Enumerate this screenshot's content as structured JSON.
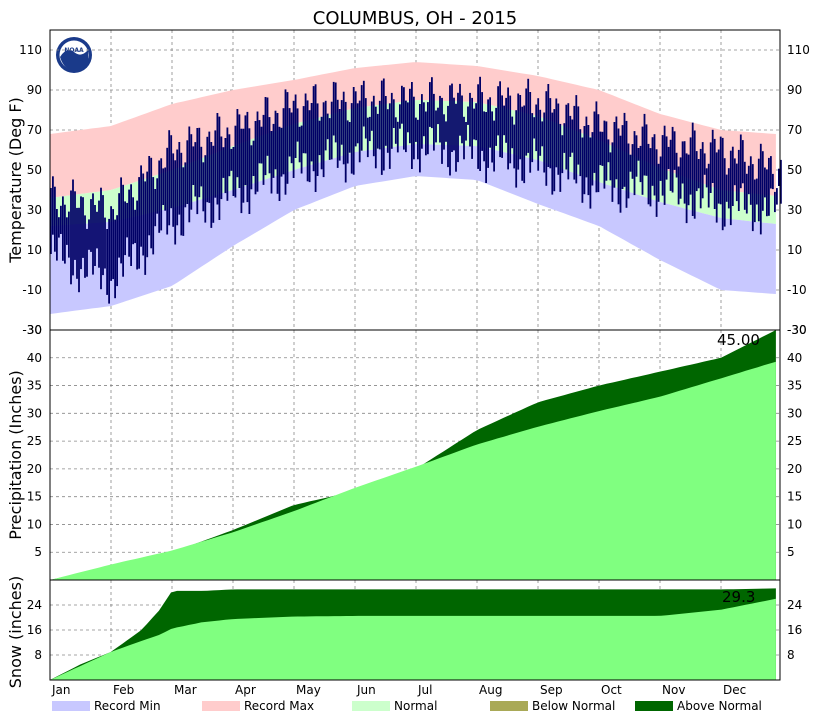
{
  "chart_data": {
    "title": "COLUMBUS, OH - 2015",
    "months": [
      "Jan",
      "Feb",
      "Mar",
      "Apr",
      "May",
      "Jun",
      "Jul",
      "Aug",
      "Sep",
      "Oct",
      "Nov",
      "Dec"
    ],
    "legend": [
      {
        "label": "Record Min",
        "color": "#c8c8ff"
      },
      {
        "label": "Record Max",
        "color": "#ffcccc"
      },
      {
        "label": "Normal",
        "color": "#ccffcc"
      },
      {
        "label": "Below Normal",
        "color": "#a9a957"
      },
      {
        "label": "Above Normal",
        "color": "#006600"
      }
    ],
    "panels": [
      {
        "type": "area",
        "ylabel": "Temperature (Deg F)",
        "ylim": [
          -30,
          120
        ],
        "ticks": [
          -30,
          -10,
          10,
          30,
          50,
          70,
          90,
          110
        ],
        "x_month_index": [
          0,
          1,
          2,
          3,
          4,
          5,
          6,
          7,
          8,
          9,
          10,
          11,
          11.9
        ],
        "record_min": [
          -22,
          -18,
          -8,
          12,
          30,
          42,
          47,
          45,
          33,
          22,
          5,
          -10,
          -12
        ],
        "record_max": [
          68,
          72,
          83,
          90,
          95,
          101,
          104,
          102,
          97,
          90,
          78,
          70,
          68
        ],
        "normal_low": [
          22,
          24,
          31,
          40,
          50,
          59,
          63,
          62,
          55,
          44,
          34,
          26,
          23
        ],
        "normal_high": [
          36,
          40,
          50,
          62,
          73,
          81,
          85,
          84,
          77,
          65,
          51,
          40,
          37
        ],
        "observed_low": [
          8,
          -5,
          25,
          38,
          50,
          58,
          62,
          58,
          52,
          42,
          40,
          32,
          30
        ],
        "observed_high": [
          36,
          30,
          60,
          70,
          82,
          85,
          85,
          85,
          84,
          72,
          64,
          60,
          50
        ]
      },
      {
        "type": "area",
        "ylabel": "Precipitation (Inches)",
        "ylim": [
          0,
          45
        ],
        "ticks": [
          5,
          10,
          15,
          20,
          25,
          30,
          35,
          40
        ],
        "total_label": "45.00",
        "x_month_index": [
          0,
          1,
          2,
          3,
          4,
          5,
          6,
          7,
          8,
          9,
          10,
          11,
          11.9
        ],
        "normal": [
          0,
          2.8,
          5.3,
          8.6,
          12.4,
          16.6,
          20.4,
          24.4,
          27.6,
          30.4,
          33.0,
          36.3,
          39.3
        ],
        "observed": [
          0,
          2.5,
          5.0,
          9.0,
          13.5,
          16.0,
          20.0,
          27.0,
          32.0,
          35.0,
          37.5,
          40.0,
          45.0
        ]
      },
      {
        "type": "area",
        "ylabel": "Snow (inches)",
        "ylim": [
          0,
          32
        ],
        "ticks": [
          8,
          16,
          24
        ],
        "total_label": "29.3",
        "x_month_index": [
          0,
          0.5,
          1,
          1.5,
          1.8,
          2,
          2.5,
          3,
          4,
          5,
          6,
          7,
          8,
          9,
          10,
          11,
          11.9
        ],
        "normal": [
          0,
          4.5,
          9,
          12.5,
          14.5,
          16.5,
          18.5,
          19.5,
          20.3,
          20.5,
          20.5,
          20.5,
          20.5,
          20.5,
          20.5,
          22.5,
          26
        ],
        "observed": [
          0,
          5,
          9,
          16,
          22.5,
          28.5,
          28.5,
          29,
          29,
          29,
          29,
          29,
          29,
          29,
          29,
          29,
          29.3
        ]
      }
    ]
  }
}
